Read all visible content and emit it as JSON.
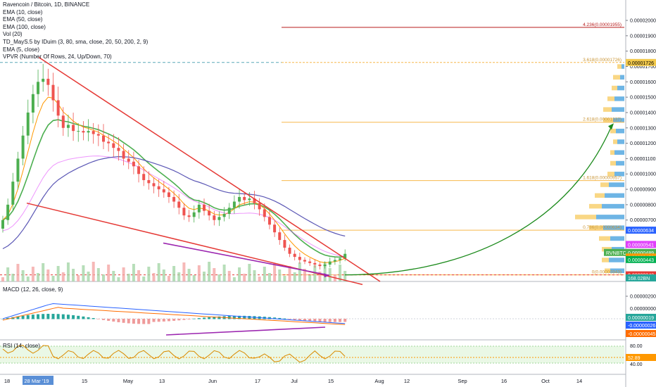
{
  "colors": {
    "up": "#26a69a",
    "down": "#ef5350",
    "up_bright": "#4caf50",
    "ema10": "#4caf50",
    "ema50": "#e040fb",
    "ema100": "#5b57b5",
    "ema5": "#ff9800",
    "wedge": "#e53935",
    "divergence": "#9c27b0",
    "projection": "#1b8a1b",
    "fib": "#f7b84b",
    "fib_top": "#b71c1c",
    "macd_line": "#2962ff",
    "signal_line": "#ff6d00",
    "rsi_line": "#d98a00",
    "rsi_band": "#d8f2d2"
  },
  "legend": [
    "Ravencoin / Bitcoin, 1D, BINANCE",
    "EMA (10, close)",
    "EMA (50, close)",
    "EMA (100, close)",
    "Vol (20)",
    "TD_MayS.5 by IDuim (3, 80, sma, close, 20, 50, 200, 2, 9)",
    "EMA (5, close)",
    "VPVR (Number Of Rows, 24, Up/Down, 70)"
  ],
  "macd_label": "MACD (12, 26, close, 9)",
  "rsi_label": "RSI (14, close)",
  "x_axis": {
    "ticks": [
      "18",
      "28 Mar '19",
      "15",
      "May",
      "13",
      "Jun",
      "17",
      "Jul",
      "15",
      "Aug",
      "12",
      "Sep",
      "16",
      "Oct",
      "14"
    ],
    "highlight": "28 Mar '19"
  },
  "price_axis": {
    "ticks": [
      "0.00002000",
      "0.00001900",
      "0.00001800",
      "0.00001700",
      "0.00001600",
      "0.00001500",
      "0.00001400",
      "0.00001300",
      "0.00001200",
      "0.00001100",
      "0.00001000",
      "0.00000900",
      "0.00000800",
      "0.00000700"
    ],
    "badges": [
      {
        "text": "0.00001726",
        "bg": "#f2c94c",
        "fg": "#000000"
      },
      {
        "text": "0.00000634",
        "bg": "#2962ff",
        "fg": "#ffffff"
      },
      {
        "text": "0.00000541",
        "bg": "#e040fb",
        "fg": "#ffffff"
      },
      {
        "text": "0.00000489",
        "bg": "#4caf50",
        "fg": "#ffffff"
      },
      {
        "text": "0.00000459",
        "bg": "#ff9800",
        "fg": "#ffffff"
      },
      {
        "text": "0.00000443",
        "bg": "#00b050",
        "fg": "#ffffff"
      },
      {
        "text": "0.00000343",
        "bg": "#e53935",
        "fg": "#ffffff"
      },
      {
        "text": "168.02BN",
        "bg": "#26a69a",
        "fg": "#ffffff"
      }
    ],
    "symbol_tag": "RVNBTC"
  },
  "macd_axis": {
    "ticks": [
      "0.00000200",
      "0.00000000"
    ],
    "badges": [
      {
        "text": "0.00000019",
        "bg": "#26a69a",
        "fg": "#ffffff"
      },
      {
        "text": "-0.00000026",
        "bg": "#2962ff",
        "fg": "#ffffff"
      },
      {
        "text": "-0.00000045",
        "bg": "#ff6d00",
        "fg": "#ffffff"
      }
    ]
  },
  "rsi_axis": {
    "ticks": [
      "80.00",
      "40.00"
    ],
    "badge": {
      "text": "52.89",
      "bg": "#ff9800",
      "fg": "#ffffff"
    }
  },
  "fib_levels": [
    {
      "label": "4.236(0.00001955)",
      "value": 1.955e-05
    },
    {
      "label": "3.618(0.00001726)",
      "value": 1.726e-05
    },
    {
      "label": "2.618(0.00001337)",
      "value": 1.337e-05
    },
    {
      "label": "1.618(0.00000957)",
      "value": 9.57e-06
    },
    {
      "label": "0.786(0.00000634)",
      "value": 6.34e-06
    },
    {
      "label": "0(0.00000343)",
      "value": 3.43e-06
    }
  ],
  "chart_data": {
    "type": "candlestick",
    "pair": "RVNBTC",
    "timeframe": "1D",
    "exchange": "BINANCE",
    "ylim": [
      3e-06,
      2.11e-05
    ],
    "price_ticks": [
      2e-05,
      1.9e-05,
      1.8e-05,
      1.7e-05,
      1.6e-05,
      1.5e-05,
      1.4e-05,
      1.3e-05,
      1.2e-05,
      1.1e-05,
      1e-05,
      9e-06,
      8e-06,
      7e-06
    ],
    "closes": [
      7e-06,
      8e-06,
      9.5e-06,
      1.1e-05,
      1.25e-05,
      1.4e-05,
      1.52e-05,
      1.6e-05,
      1.62e-05,
      1.58e-05,
      1.48e-05,
      1.38e-05,
      1.3e-05,
      1.32e-05,
      1.28e-05,
      1.28e-05,
      1.27e-05,
      1.28e-05,
      1.26e-05,
      1.25e-05,
      1.21e-05,
      1.2e-05,
      1.17e-05,
      1.15e-05,
      1.1e-05,
      1.08e-05,
      1.05e-05,
      1e-05,
      9.6e-06,
      9.4e-06,
      9.2e-06,
      9e-06,
      8.8e-06,
      8.5e-06,
      8.2e-06,
      7.8e-06,
      7.3e-06,
      7.2e-06,
      7.5e-06,
      8e-06,
      7.6e-06,
      7.3e-06,
      7e-06,
      7.2e-06,
      7.4e-06,
      7.8e-06,
      8.2e-06,
      8.5e-06,
      8.3e-06,
      8.4e-06,
      8.1e-06,
      7.7e-06,
      7.2e-06,
      6.7e-06,
      6.2e-06,
      5.7e-06,
      5.2e-06,
      4.8e-06,
      4.6e-06,
      4.4e-06,
      4.3e-06,
      4.2e-06,
      4.1e-06,
      4e-06,
      4.1e-06,
      4.3e-06,
      4.4e-06,
      4.5e-06,
      4.8e-06
    ],
    "wedge_upper": [
      [
        1.76e-05
      ],
      [
        4.1e-06
      ]
    ],
    "wedge_lower": [
      [
        8.1e-06
      ],
      [
        2.8e-06
      ]
    ],
    "projection_target": 1.33e-05
  }
}
